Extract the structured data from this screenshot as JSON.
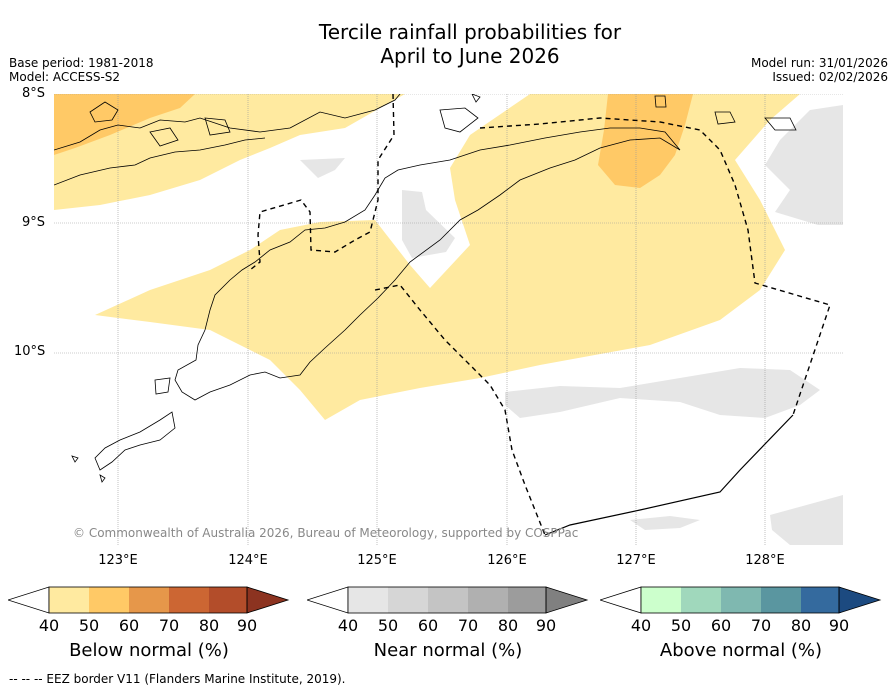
{
  "title": {
    "line1": "Tercile rainfall probabilities for",
    "line2": "April to June 2026"
  },
  "info": {
    "base_period": "Base period: 1981-2018",
    "model": "Model: ACCESS-S2",
    "model_run": "Model run: 31/01/2026",
    "issued": "Issued: 02/02/2026"
  },
  "map": {
    "lat_labels": [
      "8°S",
      "9°S",
      "10°S"
    ],
    "lon_labels": [
      "123°E",
      "124°E",
      "125°E",
      "126°E",
      "127°E",
      "128°E"
    ],
    "copyright": "© Commonwealth of Australia 2026, Bureau of Meteorology, supported by COSPPac"
  },
  "legend": {
    "ticks": [
      "40",
      "50",
      "60",
      "70",
      "80",
      "90"
    ],
    "below": {
      "label": "Below normal (%)",
      "colors": [
        "#ffeaa0",
        "#ffc966",
        "#e6974a",
        "#cc6633",
        "#b34d2a",
        "#8c3320"
      ]
    },
    "near": {
      "label": "Near normal (%)",
      "colors": [
        "#e6e6e6",
        "#d6d6d6",
        "#c4c4c4",
        "#b0b0b0",
        "#9c9c9c",
        "#808080"
      ]
    },
    "above": {
      "label": "Above normal (%)",
      "colors": [
        "#ccffcc",
        "#a0d8bc",
        "#7fb8b0",
        "#5a96a0",
        "#346a9e",
        "#1c4a80"
      ]
    }
  },
  "footer": {
    "eez_note": "--  --  -- EEZ border V11 (Flanders Marine Institute, 2019)."
  }
}
